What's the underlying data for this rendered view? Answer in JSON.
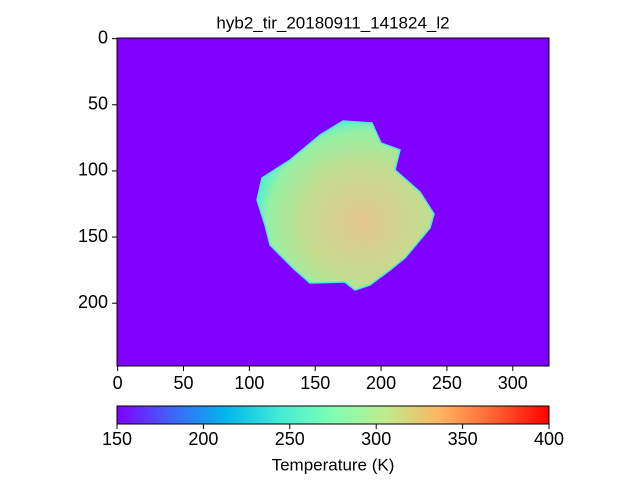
{
  "chart_data": {
    "type": "image",
    "title": "hyb2_tir_20180911_141824_l2",
    "xlim": [
      -0.5,
      327.5
    ],
    "xticks": [
      0,
      50,
      100,
      150,
      200,
      250,
      300
    ],
    "ylim": [
      247.5,
      -0.5
    ],
    "yticks": [
      0,
      50,
      100,
      150,
      200
    ],
    "colorbar": {
      "label": "Temperature (K)",
      "lim": [
        150,
        400
      ],
      "ticks": [
        150,
        200,
        250,
        300,
        350,
        400
      ],
      "colors": [
        "#8000ff",
        "#4062fa",
        "#00b5eb",
        "#40ecd4",
        "#80ffb4",
        "#c0eb8d",
        "#ffb360",
        "#ff6130",
        "#ff0000"
      ]
    }
  }
}
